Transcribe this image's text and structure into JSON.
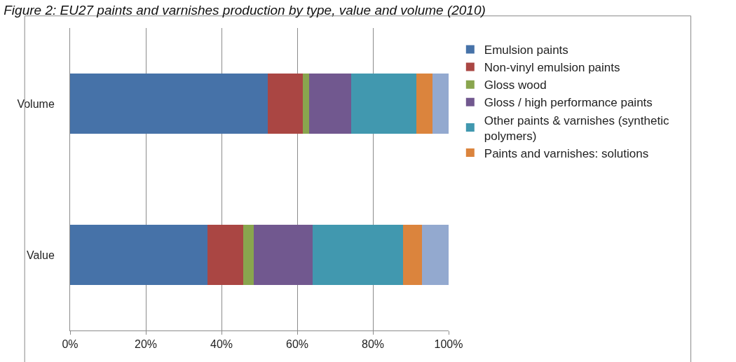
{
  "chart_data": {
    "type": "bar",
    "orientation": "horizontal",
    "stacked": true,
    "title": "Figure 2: EU27 paints and varnishes production by type, value and volume (2010)",
    "categories": [
      "Volume",
      "Value"
    ],
    "series": [
      {
        "name": "Emulsion paints",
        "color": "#4672a8",
        "values": [
          52.3,
          36.3
        ]
      },
      {
        "name": "Non-vinyl emulsion paints",
        "color": "#aa4643",
        "values": [
          9.2,
          9.4
        ]
      },
      {
        "name": "Gloss wood",
        "color": "#89a54e",
        "values": [
          1.7,
          2.8
        ]
      },
      {
        "name": "Gloss / high performance paints",
        "color": "#71588f",
        "values": [
          11.0,
          15.5
        ]
      },
      {
        "name": "Other paints & varnishes (synthetic polymers)",
        "color": "#4198af",
        "values": [
          17.3,
          23.9
        ]
      },
      {
        "name": "Paints and varnishes: solutions",
        "color": "#db843d",
        "values": [
          4.3,
          5.0
        ]
      },
      {
        "color": "#93a9cf",
        "values": [
          4.2,
          7.1
        ]
      }
    ],
    "xlim": [
      0,
      100
    ],
    "xticks": [
      {
        "value": 0,
        "label": "0%"
      },
      {
        "value": 20,
        "label": "20%"
      },
      {
        "value": 40,
        "label": "40%"
      },
      {
        "value": 60,
        "label": "60%"
      },
      {
        "value": 80,
        "label": "80%"
      },
      {
        "value": 100,
        "label": "100%"
      }
    ],
    "grid": "x",
    "legend": "right"
  }
}
